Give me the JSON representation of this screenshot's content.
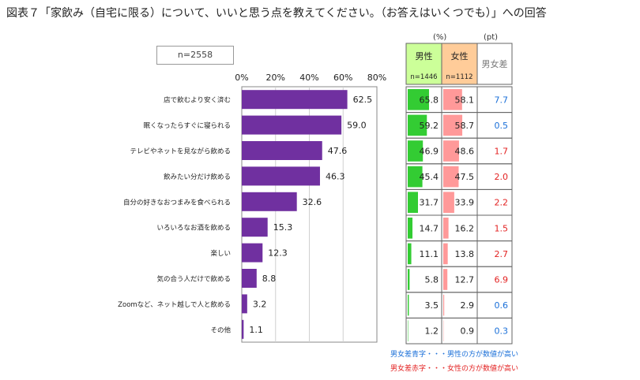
{
  "title": "図表７「家飲み（自宅に限る）について、いいと思う点を教えてください。（お答えはいくつでも）」への回答",
  "n_label": "n=2558",
  "units": {
    "percent": "(%)",
    "pt": "(pt)"
  },
  "columns": {
    "male": {
      "label": "男性",
      "n": "n=1446"
    },
    "female": {
      "label": "女性",
      "n": "n=1112"
    },
    "diff": {
      "label": "男女差"
    }
  },
  "legend": {
    "blue": "男女差青字・・・男性の方が数値が高い",
    "red": "男女差赤字・・・女性の方が数値が高い"
  },
  "colors": {
    "bar": "#7030a0",
    "male_bar": "#33cc33",
    "female_bar": "#ff9999",
    "male_header_bg": "#ccff99",
    "female_header_bg": "#ffcc99",
    "diff_blue": "#1a6fd8",
    "diff_red": "#e32222"
  },
  "chart_data": {
    "type": "bar",
    "orientation": "horizontal",
    "xlim": [
      0,
      80
    ],
    "xticks": [
      "0%",
      "20%",
      "40%",
      "60%",
      "80%"
    ],
    "tick_values": [
      0,
      20,
      40,
      60,
      80
    ],
    "categories": [
      "店で飲むより安く済む",
      "眠くなったらすぐに寝られる",
      "テレビやネットを見ながら飲める",
      "飲みたい分だけ飲める",
      "自分の好きなおつまみを食べられる",
      "いろいろなお酒を飲める",
      "楽しい",
      "気の合う人だけで飲める",
      "Zoomなど、ネット越しで人と飲める",
      "その他"
    ],
    "values": [
      62.5,
      59.0,
      47.6,
      46.3,
      32.6,
      15.3,
      12.3,
      8.8,
      3.2,
      1.1
    ],
    "labels": [
      "62.5",
      "59.0",
      "47.6",
      "46.3",
      "32.6",
      "15.3",
      "12.3",
      "8.8",
      "3.2",
      "1.1"
    ],
    "table": {
      "male": [
        65.8,
        59.2,
        46.9,
        45.4,
        31.7,
        14.7,
        11.1,
        5.8,
        3.5,
        1.2
      ],
      "male_labels": [
        "65.8",
        "59.2",
        "46.9",
        "45.4",
        "31.7",
        "14.7",
        "11.1",
        "5.8",
        "3.5",
        "1.2"
      ],
      "female": [
        58.1,
        58.7,
        48.6,
        47.5,
        33.9,
        16.2,
        13.8,
        12.7,
        2.9,
        0.9
      ],
      "female_labels": [
        "58.1",
        "58.7",
        "48.6",
        "47.5",
        "33.9",
        "16.2",
        "13.8",
        "12.7",
        "2.9",
        "0.9"
      ],
      "diff": [
        "7.7",
        "0.5",
        "1.7",
        "2.0",
        "2.2",
        "1.5",
        "2.7",
        "6.9",
        "0.6",
        "0.3"
      ],
      "diff_color": [
        "blue",
        "blue",
        "red",
        "red",
        "red",
        "red",
        "red",
        "red",
        "blue",
        "blue"
      ],
      "table_max": 100
    }
  }
}
